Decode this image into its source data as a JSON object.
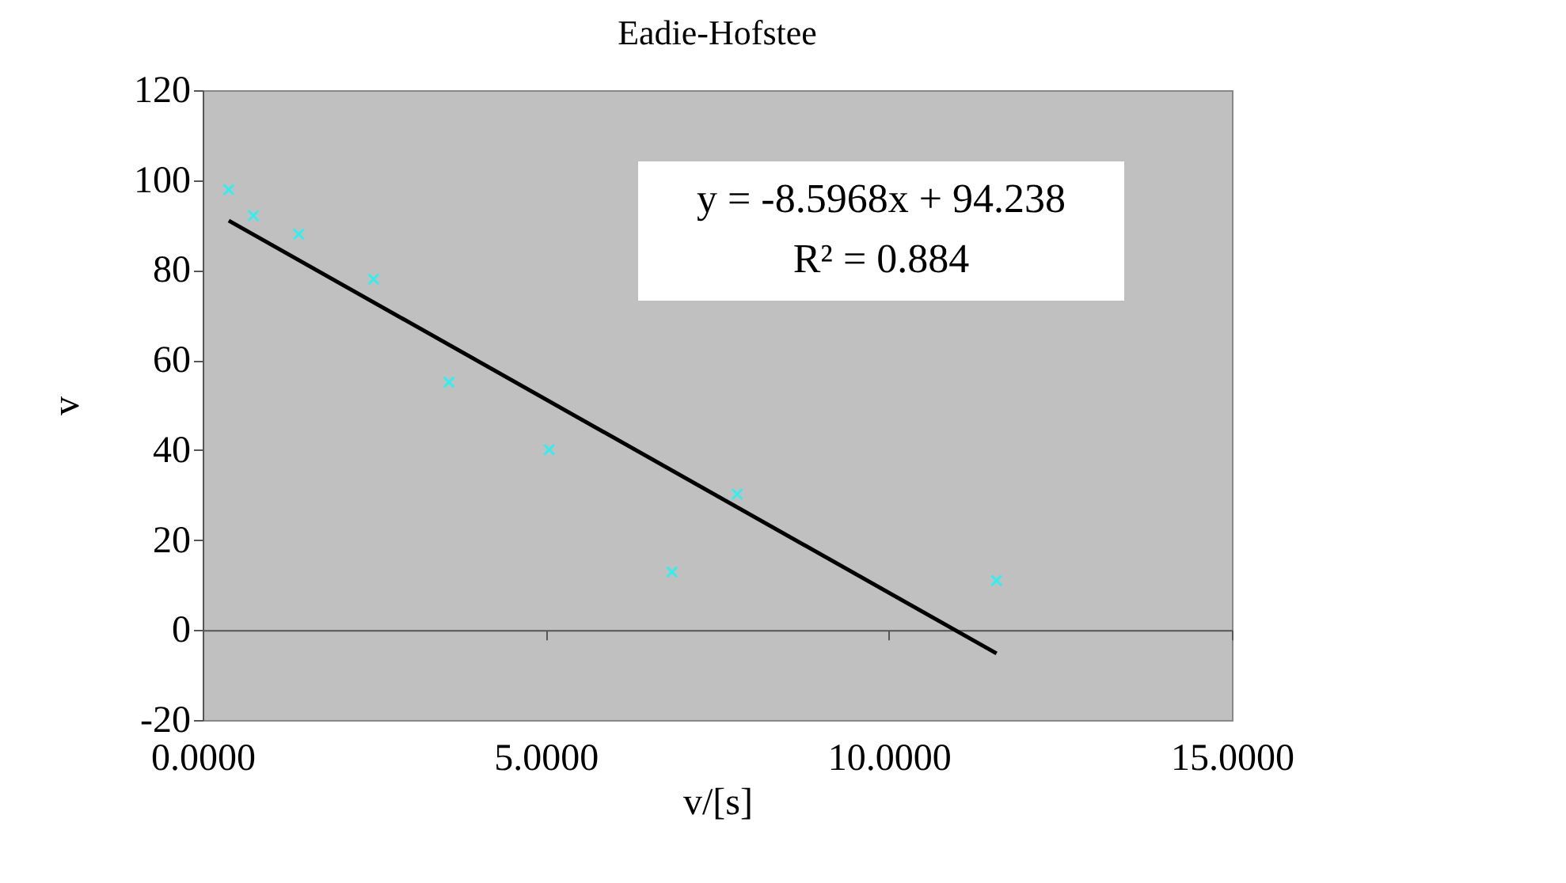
{
  "chart_data": {
    "type": "scatter",
    "title": "Eadie-Hofstee",
    "xlabel": "v/[s]",
    "ylabel": "v",
    "series": [
      {
        "color": "#00ffff",
        "marker": "cross",
        "x": [
          0.38,
          0.74,
          1.4,
          2.49,
          3.59,
          5.05,
          6.84,
          7.79,
          11.57
        ],
        "values": [
          97.9,
          92.1,
          88.0,
          78.0,
          55.1,
          40.1,
          12.9,
          30.2,
          11.0
        ]
      },
      {
        "type": "line",
        "color": "#000000",
        "x": [
          0.38,
          11.57
        ],
        "values": [
          91.0,
          -5.2
        ]
      }
    ],
    "xlim": [
      0,
      15
    ],
    "xticks": [
      {
        "value": 0,
        "label": "0.0000"
      },
      {
        "value": 5,
        "label": "5.0000"
      },
      {
        "value": 10,
        "label": "10.0000"
      },
      {
        "value": 15,
        "label": "15.0000"
      }
    ],
    "ylim": [
      -20,
      120
    ],
    "yticks": [
      -20,
      0,
      20,
      40,
      60,
      80,
      100,
      120
    ],
    "annotations": [
      "y = -8.5968x + 94.238",
      "R² = 0.884"
    ]
  }
}
